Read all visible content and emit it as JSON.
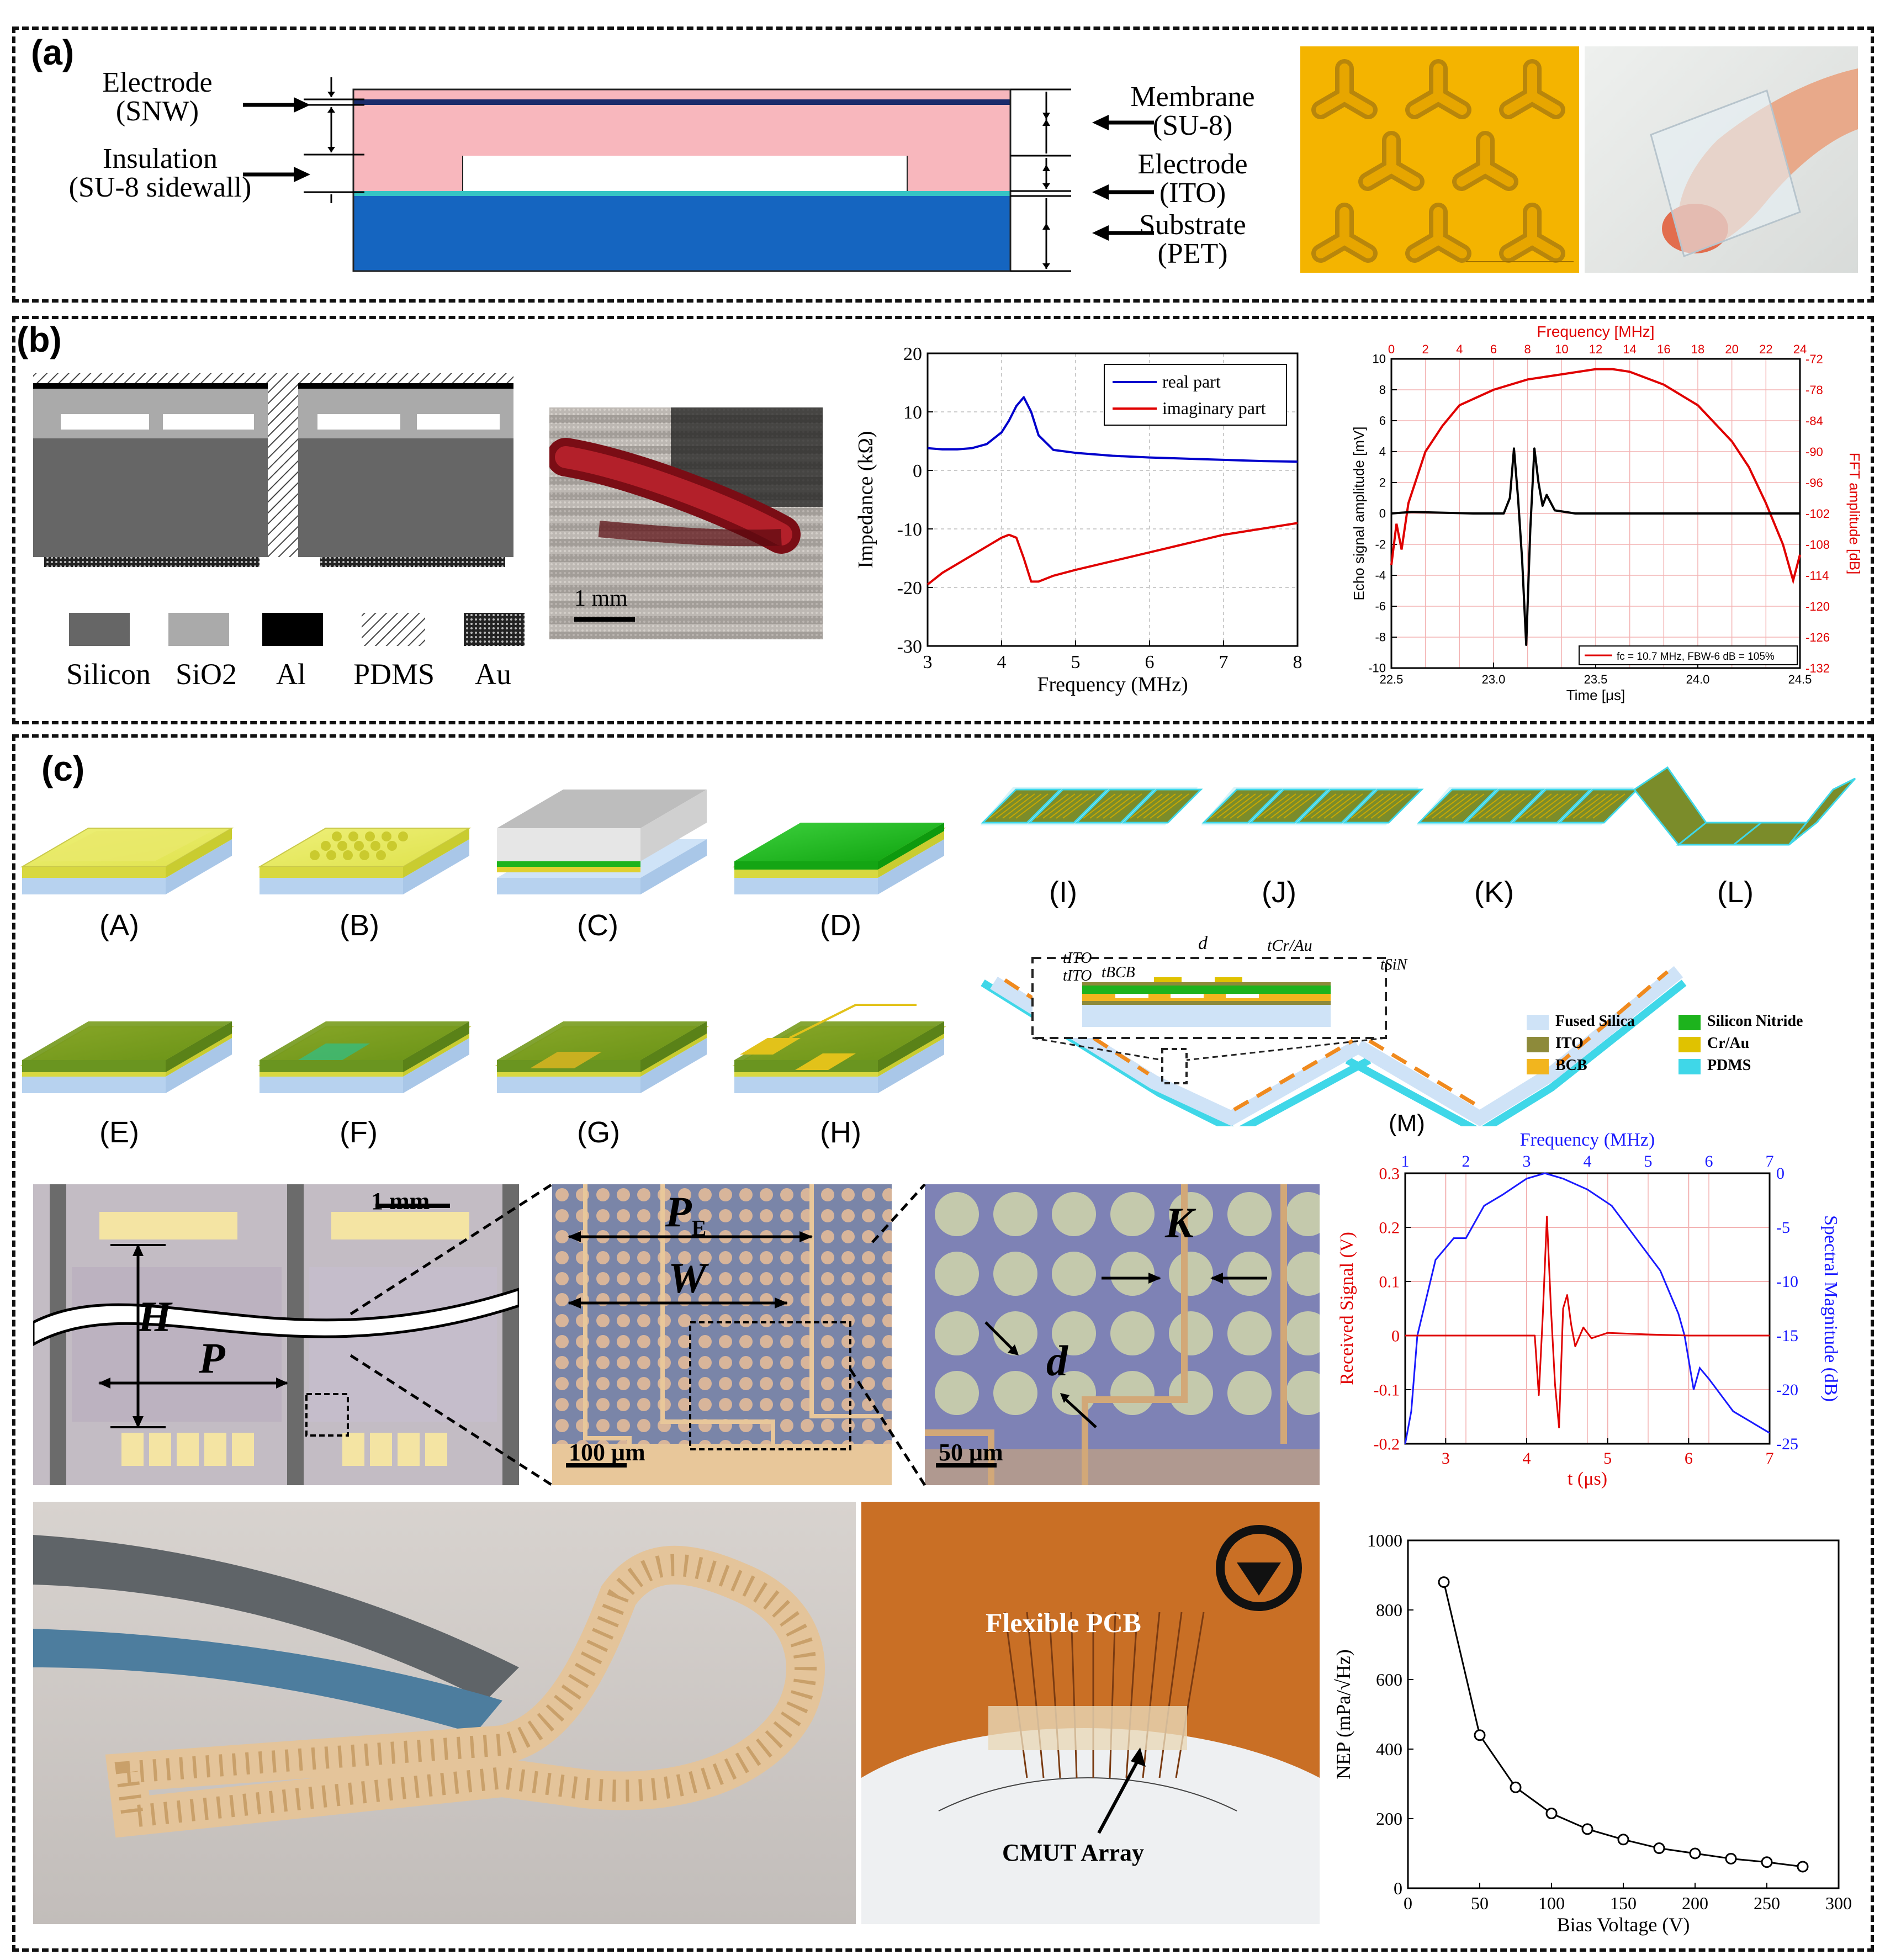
{
  "panel_a": {
    "label": "(a)",
    "left_labels": [
      {
        "line1": "Electrode",
        "line2": "(SNW)"
      },
      {
        "line1": "Insulation",
        "line2": "(SU-8 sidewall)"
      }
    ],
    "right_labels": [
      {
        "line1": "Membrane",
        "line2": "(SU-8)"
      },
      {
        "line1": "Electrode",
        "line2": "(ITO)"
      },
      {
        "line1": "Substrate",
        "line2": "(PET)"
      }
    ],
    "colors": {
      "su8": "#f8b7bd",
      "snw": "#1b2b6b",
      "ito": "#36c4c4",
      "pet": "#1565c0"
    }
  },
  "panel_b": {
    "label": "(b)",
    "legend": [
      "Silicon",
      "SiO2",
      "Al",
      "PDMS",
      "Au"
    ],
    "scalebar": "1 mm"
  },
  "panel_c": {
    "label": "(c)",
    "steps_top": [
      "(A)",
      "(B)",
      "(C)",
      "(D)"
    ],
    "steps_bottom": [
      "(E)",
      "(F)",
      "(G)",
      "(H)"
    ],
    "steps_right": [
      "(I)",
      "(J)",
      "(K)",
      "(L)"
    ],
    "cross_section_labels": {
      "tito1": "tITO",
      "tito2": "tITO",
      "d": "d",
      "tcrau": "tCr/Au",
      "tbcb": "tBCB",
      "tsin": "tSiN"
    },
    "materials": [
      {
        "name": "Fused Silica",
        "color": "#cfe3f7"
      },
      {
        "name": "ITO",
        "color": "#8d8a3a"
      },
      {
        "name": "BCB",
        "color": "#f2b51e"
      },
      {
        "name": "Silicon Nitride",
        "color": "#1db31d"
      },
      {
        "name": "Cr/Au",
        "color": "#e0c200"
      },
      {
        "name": "PDMS",
        "color": "#3fd7e8"
      }
    ],
    "micrographs": {
      "scale1": "1 mm",
      "H": "H",
      "P": "P",
      "PE": "P",
      "PE_sub": "E",
      "W": "W",
      "scale2": "100 μm",
      "K": "K",
      "d": "d",
      "scale3": "50 μm"
    },
    "m_label": "(M)",
    "pcb_labels": {
      "flex": "Flexible PCB",
      "cmut": "CMUT Array"
    }
  },
  "chart_data": [
    {
      "type": "line",
      "panel": "b-impedance",
      "xlabel": "Frequency (MHz)",
      "ylabel": "Impedance (kΩ)",
      "xlim": [
        3,
        8
      ],
      "ylim": [
        -30,
        20
      ],
      "xticks": [
        3,
        4,
        5,
        6,
        7,
        8
      ],
      "yticks": [
        20,
        10,
        0,
        -10,
        -20,
        -30
      ],
      "grid": true,
      "legend_position": "top-right",
      "series": [
        {
          "name": "real part",
          "color": "#0000cc",
          "x": [
            3.0,
            3.2,
            3.4,
            3.6,
            3.8,
            4.0,
            4.1,
            4.2,
            4.3,
            4.4,
            4.5,
            4.7,
            5.0,
            5.5,
            6.0,
            6.5,
            7.0,
            7.5,
            8.0
          ],
          "y": [
            3.8,
            3.6,
            3.6,
            3.8,
            4.5,
            6.5,
            8.5,
            11,
            12.5,
            10,
            6,
            3.5,
            3,
            2.5,
            2.2,
            2,
            1.8,
            1.6,
            1.5
          ]
        },
        {
          "name": "imaginary part",
          "color": "#e00000",
          "x": [
            3.0,
            3.2,
            3.4,
            3.6,
            3.8,
            4.0,
            4.1,
            4.2,
            4.3,
            4.4,
            4.5,
            4.7,
            5.0,
            5.5,
            6.0,
            6.5,
            7.0,
            7.5,
            8.0
          ],
          "y": [
            -19.5,
            -17.5,
            -16,
            -14.5,
            -13,
            -11.5,
            -11,
            -11.5,
            -15,
            -19,
            -19,
            -18,
            -17,
            -15.5,
            -14,
            -12.5,
            -11,
            -10,
            -9
          ]
        }
      ]
    },
    {
      "type": "line",
      "panel": "b-echo",
      "xlabel": "Time [μs]",
      "ylabel": "Echo signal amplitude [mV]",
      "top_xlabel": "Frequency [MHz]",
      "right_ylabel": "FFT amplitude [dB]",
      "xlim": [
        22.5,
        24.5
      ],
      "ylim": [
        -10,
        10
      ],
      "xticks": [
        22.5,
        23.0,
        23.5,
        24.0,
        24.5
      ],
      "yticks": [
        10,
        8,
        6,
        4,
        2,
        0,
        -2,
        -4,
        -6,
        -8,
        -10
      ],
      "top_xticks": [
        0,
        2,
        4,
        6,
        8,
        10,
        12,
        14,
        16,
        18,
        20,
        22,
        24
      ],
      "right_yticks": [
        -72,
        -78,
        -84,
        -90,
        -96,
        -102,
        -108,
        -114,
        -120,
        -126,
        -132
      ],
      "legend": "fc = 10.7 MHz, FBW-6 dB = 105%",
      "series": [
        {
          "name": "Echo signal",
          "color": "#000000",
          "x": [
            22.5,
            22.6,
            22.9,
            23.05,
            23.08,
            23.1,
            23.12,
            23.14,
            23.16,
            23.18,
            23.2,
            23.22,
            23.24,
            23.26,
            23.3,
            23.4,
            24.0,
            24.5
          ],
          "y": [
            0,
            0.1,
            0,
            0,
            1,
            4.2,
            1,
            -3,
            -8.5,
            -1,
            4.2,
            2,
            0.5,
            1.2,
            0.2,
            0,
            0,
            0
          ]
        },
        {
          "name": "FFT",
          "color": "#e00000",
          "freq_mhz": [
            0,
            0.3,
            0.6,
            1,
            2,
            3,
            4,
            6,
            8,
            10,
            12,
            13,
            14,
            16,
            18,
            20,
            21,
            22,
            23,
            23.6,
            24
          ],
          "db": [
            -112,
            -104,
            -109,
            -100,
            -90,
            -85,
            -81,
            -78,
            -76,
            -75,
            -74,
            -74,
            -74.5,
            -77,
            -81,
            -88,
            -93,
            -100,
            -108,
            -115,
            -110
          ]
        }
      ]
    },
    {
      "type": "line",
      "panel": "c-M",
      "xlabel": "t (μs)",
      "ylabel": "Received Signal (V)",
      "top_xlabel": "Frequency (MHz)",
      "right_ylabel": "Spectral Magnitude (dB)",
      "xlim": [
        2.5,
        7
      ],
      "ylim": [
        -0.2,
        0.3
      ],
      "xticks": [
        3,
        4,
        5,
        6,
        7
      ],
      "yticks": [
        0.3,
        0.2,
        0.1,
        0,
        -0.1,
        -0.2
      ],
      "top_xticks": [
        1,
        2,
        3,
        4,
        5,
        6,
        7
      ],
      "right_yticks": [
        0,
        -5,
        -10,
        -15,
        -20,
        -25
      ],
      "series": [
        {
          "name": "Received Signal",
          "color": "#e00000",
          "x": [
            2.5,
            4.1,
            4.15,
            4.2,
            4.25,
            4.3,
            4.35,
            4.4,
            4.45,
            4.5,
            4.55,
            4.6,
            4.7,
            4.8,
            5.0,
            5.5,
            6.0,
            7.0
          ],
          "y": [
            0,
            0,
            -0.11,
            0.04,
            0.22,
            0.05,
            -0.09,
            -0.17,
            0.05,
            0.075,
            0.02,
            -0.02,
            0.015,
            -0.005,
            0.005,
            0.002,
            0,
            0
          ]
        },
        {
          "name": "Spectral Magnitude",
          "color": "#1a1aff",
          "freq_mhz": [
            1,
            1.1,
            1.2,
            1.5,
            1.8,
            2.0,
            2.3,
            2.6,
            3.0,
            3.3,
            3.6,
            4.0,
            4.4,
            4.8,
            5.2,
            5.5,
            5.6,
            5.75,
            5.85,
            6.0,
            6.4,
            7.0
          ],
          "db": [
            -25,
            -22,
            -15,
            -8,
            -6,
            -6,
            -3,
            -2,
            -0.5,
            0,
            -0.5,
            -1.5,
            -3,
            -6,
            -9,
            -13,
            -15,
            -20,
            -18,
            -19,
            -22,
            -24
          ]
        }
      ]
    },
    {
      "type": "line",
      "panel": "c-NEP",
      "xlabel": "Bias Voltage (V)",
      "ylabel": "NEP (mPa/√Hz)",
      "xlim": [
        0,
        300
      ],
      "ylim": [
        0,
        1000
      ],
      "xticks": [
        0,
        50,
        100,
        150,
        200,
        250,
        300
      ],
      "yticks": [
        0,
        200,
        400,
        600,
        800,
        1000
      ],
      "series": [
        {
          "name": "NEP",
          "color": "#000000",
          "x": [
            25,
            50,
            75,
            100,
            125,
            150,
            175,
            200,
            225,
            250,
            275
          ],
          "y": [
            880,
            440,
            290,
            215,
            170,
            140,
            115,
            100,
            85,
            75,
            62
          ]
        }
      ]
    }
  ]
}
